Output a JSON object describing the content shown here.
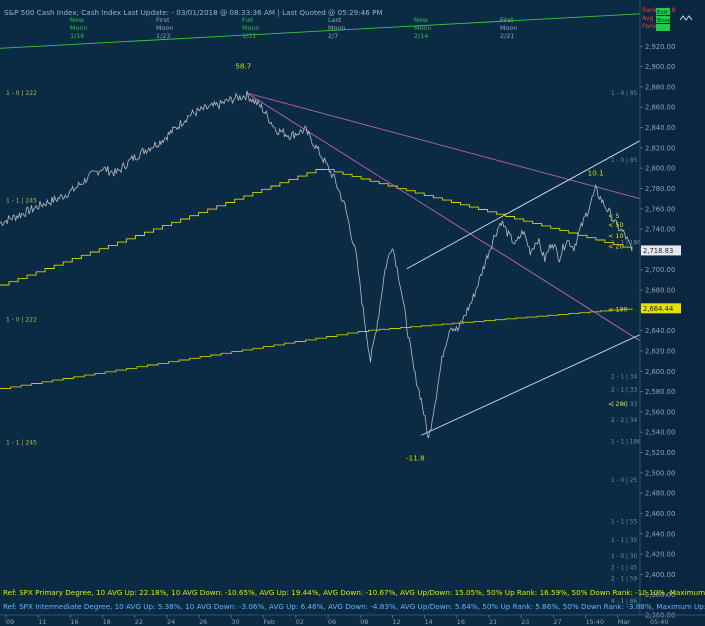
{
  "header": {
    "title_line": "S&P 500 Cash Index;  Cash Index  Last Update:  - 03/01/2018 @ 08:33:36 AM | Last Quoted @ 05:29:46 PM",
    "moon_phases": [
      {
        "phase": "New",
        "word": "Moon",
        "date": "1/16"
      },
      {
        "phase": "First",
        "word": "Moon",
        "date": "1/23"
      },
      {
        "phase": "Full",
        "word": "Moon",
        "date": "1/31"
      },
      {
        "phase": "Last",
        "word": "Moon",
        "date": "2/7"
      },
      {
        "phase": "New",
        "word": "Moon",
        "date": "2/14"
      },
      {
        "phase": "First",
        "word": "Moon",
        "date": "2/21"
      }
    ],
    "corner_info": [
      {
        "text": "Rank: - 8.8",
        "color": "#ff3a3a"
      },
      {
        "text": "Avg Rnk",
        "color": "#ff3a3a"
      },
      {
        "text": "Panic",
        "color": "#ff3a3a"
      }
    ],
    "corner_badges": [
      "Exit",
      "Bnse",
      ""
    ]
  },
  "chart_data": {
    "type": "line",
    "title": "S&P 500 Cash Index",
    "ylim": [
      2360,
      2940
    ],
    "y_ticks": [
      2360,
      2380,
      2400,
      2420,
      2440,
      2460,
      2480,
      2500,
      2520,
      2540,
      2560,
      2580,
      2600,
      2620,
      2640,
      2660,
      2680,
      2700,
      2720,
      2740,
      2760,
      2780,
      2800,
      2820,
      2840,
      2860,
      2880,
      2900,
      2920
    ],
    "y_tick_labels": [
      "2,360.00",
      "2,380.00",
      "2,400.00",
      "2,420.00",
      "2,440.00",
      "2,460.00",
      "2,480.00",
      "2,500.00",
      "2,520.00",
      "2,540.00",
      "2,560.00",
      "2,580.00",
      "2,600.00",
      "2,620.00",
      "2,640.00",
      "2,660.00",
      "2,680.00",
      "2,700.00",
      "2,720.00",
      "2,740.00",
      "2,760.00",
      "2,780.00",
      "2,800.00",
      "2,820.00",
      "2,840.00",
      "2,860.00",
      "2,880.00",
      "2,900.00",
      "2,920.00"
    ],
    "x_tick_labels": [
      "09",
      "11",
      "16",
      "18",
      "22",
      "24",
      "26",
      "30",
      "Feb",
      "02",
      "06",
      "08",
      "12",
      "14",
      "16",
      "21",
      "23",
      "27",
      "15:40",
      "Mar",
      "05:40"
    ],
    "price_series": [
      {
        "i": 0,
        "y": 2746
      },
      {
        "i": 4,
        "y": 2752
      },
      {
        "i": 8,
        "y": 2758
      },
      {
        "i": 12,
        "y": 2765
      },
      {
        "i": 16,
        "y": 2770
      },
      {
        "i": 20,
        "y": 2778
      },
      {
        "i": 24,
        "y": 2790
      },
      {
        "i": 28,
        "y": 2800
      },
      {
        "i": 32,
        "y": 2795
      },
      {
        "i": 36,
        "y": 2808
      },
      {
        "i": 40,
        "y": 2818
      },
      {
        "i": 44,
        "y": 2826
      },
      {
        "i": 48,
        "y": 2838
      },
      {
        "i": 52,
        "y": 2852
      },
      {
        "i": 56,
        "y": 2858
      },
      {
        "i": 60,
        "y": 2862
      },
      {
        "i": 64,
        "y": 2868
      },
      {
        "i": 68,
        "y": 2872
      },
      {
        "i": 72,
        "y": 2860
      },
      {
        "i": 76,
        "y": 2838
      },
      {
        "i": 80,
        "y": 2832
      },
      {
        "i": 84,
        "y": 2838
      },
      {
        "i": 88,
        "y": 2815
      },
      {
        "i": 92,
        "y": 2790
      },
      {
        "i": 95,
        "y": 2762
      },
      {
        "i": 98,
        "y": 2715
      },
      {
        "i": 100,
        "y": 2660
      },
      {
        "i": 102,
        "y": 2610
      },
      {
        "i": 104,
        "y": 2650
      },
      {
        "i": 106,
        "y": 2700
      },
      {
        "i": 108,
        "y": 2725
      },
      {
        "i": 110,
        "y": 2690
      },
      {
        "i": 112,
        "y": 2645
      },
      {
        "i": 114,
        "y": 2600
      },
      {
        "i": 116,
        "y": 2572
      },
      {
        "i": 118,
        "y": 2533
      },
      {
        "i": 120,
        "y": 2575
      },
      {
        "i": 122,
        "y": 2618
      },
      {
        "i": 124,
        "y": 2645
      },
      {
        "i": 126,
        "y": 2640
      },
      {
        "i": 128,
        "y": 2655
      },
      {
        "i": 130,
        "y": 2670
      },
      {
        "i": 132,
        "y": 2690
      },
      {
        "i": 134,
        "y": 2712
      },
      {
        "i": 136,
        "y": 2732
      },
      {
        "i": 138,
        "y": 2748
      },
      {
        "i": 140,
        "y": 2734
      },
      {
        "i": 142,
        "y": 2725
      },
      {
        "i": 144,
        "y": 2738
      },
      {
        "i": 146,
        "y": 2718
      },
      {
        "i": 148,
        "y": 2730
      },
      {
        "i": 150,
        "y": 2710
      },
      {
        "i": 152,
        "y": 2728
      },
      {
        "i": 154,
        "y": 2712
      },
      {
        "i": 156,
        "y": 2730
      },
      {
        "i": 158,
        "y": 2722
      },
      {
        "i": 160,
        "y": 2742
      },
      {
        "i": 162,
        "y": 2760
      },
      {
        "i": 164,
        "y": 2779
      },
      {
        "i": 166,
        "y": 2766
      },
      {
        "i": 168,
        "y": 2755
      },
      {
        "i": 170,
        "y": 2742
      },
      {
        "i": 172,
        "y": 2735
      },
      {
        "i": 174,
        "y": 2718
      }
    ],
    "i_max": 174,
    "trendlines": [
      {
        "name": "upper-green",
        "color": "#38c838",
        "from": [
          0,
          2918
        ],
        "to": [
          174,
          2952
        ]
      },
      {
        "name": "magenta-1",
        "color": "#c060c0",
        "from": [
          68,
          2874
        ],
        "to": [
          174,
          2770
        ]
      },
      {
        "name": "magenta-2",
        "color": "#c060c0",
        "from": [
          68,
          2874
        ],
        "to": [
          174,
          2630
        ]
      },
      {
        "name": "white-1",
        "color": "#cfe0f0",
        "from": [
          112,
          2701
        ],
        "to": [
          174,
          2827
        ]
      },
      {
        "name": "white-2",
        "color": "#cfe0f0",
        "from": [
          116,
          2537
        ],
        "to": [
          174,
          2636
        ]
      }
    ],
    "moving_averages": [
      {
        "name": "ma-fast",
        "color": "#d6d600",
        "start": [
          0,
          2685
        ],
        "peak": [
          88,
          2800
        ],
        "end": [
          174,
          2720
        ]
      },
      {
        "name": "ma-slow",
        "color": "#c8c800",
        "start": [
          0,
          2583
        ],
        "mid": [
          100,
          2640
        ],
        "end": [
          174,
          2662
        ]
      }
    ],
    "ma_labels": [
      {
        "text": "< 5",
        "y": 2753
      },
      {
        "text": "< 50",
        "y": 2744
      },
      {
        "text": "< 10",
        "y": 2733
      },
      {
        "text": "< 20",
        "y": 2723
      },
      {
        "text": "< 100",
        "y": 2661
      },
      {
        "text": "< 200",
        "y": 2568
      }
    ],
    "peak_annotations": [
      {
        "text": "58.7",
        "i": 67,
        "y": 2898,
        "color": "#d8d800"
      },
      {
        "text": "10.1",
        "i": 164,
        "y": 2793,
        "color": "#d8d800"
      },
      {
        "text": "-11.8",
        "i": 114,
        "y": 2512,
        "color": "#d8d800"
      }
    ],
    "left_level_labels": [
      {
        "text": "1 - 0 | 222",
        "y": 2874
      },
      {
        "text": "1 - 1 | 245",
        "y": 2768
      },
      {
        "text": "1 - 0 | 222",
        "y": 2651
      },
      {
        "text": "1 - 1 | 245",
        "y": 2530
      }
    ],
    "right_level_labels": [
      {
        "text": "1 - 0 | 85",
        "y": 2874
      },
      {
        "text": "1 - 0 | 85",
        "y": 2808
      },
      {
        "text": "1 - 1 | 186",
        "y": 2727
      },
      {
        "text": "2 - 1 | 34",
        "y": 2595
      },
      {
        "text": "2 - 1 | 33",
        "y": 2582
      },
      {
        "text": "1 - 0 | 33",
        "y": 2568
      },
      {
        "text": "2 - 2 | 34",
        "y": 2552
      },
      {
        "text": "1 - 1 | 186",
        "y": 2531
      },
      {
        "text": "1 - 0 | 25",
        "y": 2493
      },
      {
        "text": "1 - 1 | 55",
        "y": 2452
      },
      {
        "text": "1 - 1 | 35",
        "y": 2434
      },
      {
        "text": "1 - 0 | 30",
        "y": 2418
      },
      {
        "text": "2 - 1 | 45",
        "y": 2407
      },
      {
        "text": "2 - 1 | 59",
        "y": 2396
      },
      {
        "text": "4 - 1 | 86",
        "y": 2374
      }
    ],
    "price_badges": [
      {
        "text": "2,718.83",
        "y": 2719,
        "bg": "#e8e8e8",
        "fg": "#0b2a44"
      },
      {
        "text": "2,664.44",
        "y": 2662,
        "bg": "#e8e000",
        "fg": "#0b2a44"
      }
    ]
  },
  "footer": {
    "line1": "Ref: SPX Primary Degree, 10 AVG Up: 22.18%, 10 AVG Down: -10.65%, AVG Up: 19.44%, AVG Down: -10.67%, AVG Up/Down: 15.05%, 50%  Up Rank: 16.59%, 50% Down Rank: -10.10%, Maximum Up: 58.71%, Maximum",
    "line2": "Ref: SPX Intermediate Degree, 10 AVG Up: 5.38%, 10 AVG Down: -3.06%, AVG Up: 6.46%, AVG Down: -4.83%, AVG Up/Down: 5.64%, 50%  Up Rank: 5.86%, 50% Down Rank: -3.88%, Maximum Up: 20.27%, Maximum Do"
  },
  "colors": {
    "background": "#0b2a44",
    "grid": "#1e4461",
    "price": "#b8bcc2",
    "axis_text": "#8fa3b5",
    "footer1": "#e6e600",
    "footer2": "#5fb8ff"
  }
}
